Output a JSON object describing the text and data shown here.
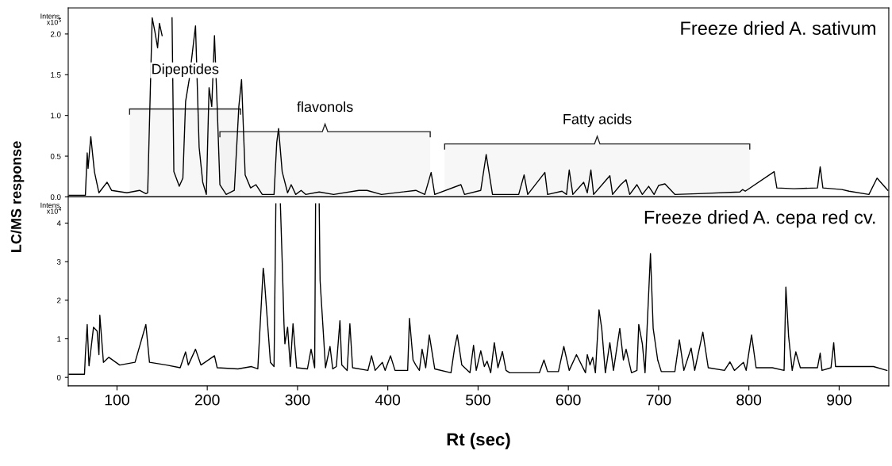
{
  "chart_data": [
    {
      "type": "line",
      "title": "Freeze dried A. sativum",
      "ylabel": "LC/MS response",
      "annotations": [
        "Intens.\nx10$^{5}$"
      ],
      "xlim": [
        46,
        955
      ],
      "ylim": [
        0,
        2.32
      ],
      "yticks": [
        {
          "value": 0,
          "label": "0.0"
        },
        {
          "value": 0.5,
          "label": "0.5"
        },
        {
          "value": 1,
          "label": "1.0"
        },
        {
          "value": 1.5,
          "label": "1.5"
        },
        {
          "value": 2,
          "label": "2.0"
        }
      ],
      "tick_labels": "y",
      "grid": false,
      "legend": false,
      "bands": [
        {
          "axis": "x",
          "from": 114,
          "to": 237,
          "label": "Dipeptides"
        },
        {
          "axis": "x",
          "from": 214,
          "to": 447,
          "label": "flavonols"
        },
        {
          "axis": "x",
          "from": 463,
          "to": 801,
          "label": "Fatty acids"
        }
      ],
      "series": [
        {
          "color": "#000000",
          "x": [
            47,
            65,
            67,
            68,
            71,
            75,
            80,
            89,
            94,
            111,
            125,
            132,
            134,
            139,
            142,
            145,
            147,
            150,
            152,
            159,
            161,
            163,
            169,
            173,
            176,
            180,
            187,
            191,
            195,
            199,
            202,
            205,
            208,
            211,
            214,
            221,
            230,
            235,
            238,
            242,
            248,
            254,
            261,
            274,
            277,
            279,
            283,
            289,
            293,
            298,
            304,
            309,
            324,
            340,
            368,
            377,
            393,
            431,
            441,
            448,
            452,
            481,
            485,
            503,
            509,
            512,
            516,
            545,
            551,
            555,
            574,
            577,
            593,
            598,
            601,
            605,
            617,
            621,
            625,
            628,
            646,
            649,
            658,
            664,
            668,
            676,
            682,
            689,
            695,
            700,
            707,
            718,
            744,
            790,
            793,
            796,
            828,
            831,
            850,
            876,
            879,
            882,
            903,
            911,
            933,
            942,
            954
          ],
          "values": [
            0.02,
            0.02,
            0.54,
            0.35,
            0.74,
            0.31,
            0.05,
            0.18,
            0.08,
            0.05,
            0.08,
            0.04,
            0.05,
            2.2,
            2.03,
            1.83,
            2.13,
            1.98,
            null,
            null,
            2.2,
            0.31,
            0.13,
            0.23,
            1.17,
            1.44,
            2.1,
            0.61,
            0.18,
            0.03,
            1.34,
            1.11,
            1.98,
            1.11,
            0.15,
            0.03,
            0.08,
            1.11,
            1.44,
            0.27,
            0.11,
            0.15,
            0.03,
            0.03,
            0.67,
            0.84,
            0.31,
            0.05,
            0.15,
            0.03,
            0.08,
            0.03,
            0.06,
            0.03,
            0.08,
            0.08,
            0.03,
            0.08,
            0.03,
            0.3,
            0.03,
            0.15,
            0.03,
            0.08,
            0.52,
            0.31,
            0.03,
            0.03,
            0.27,
            0.03,
            0.3,
            0.03,
            0.07,
            0.03,
            0.33,
            0.03,
            0.18,
            0.05,
            0.33,
            0.03,
            0.26,
            0.03,
            0.15,
            0.21,
            0.03,
            0.15,
            0.03,
            0.13,
            0.03,
            0.14,
            0.16,
            0.03,
            0.04,
            0.06,
            0.09,
            0.07,
            0.31,
            0.11,
            0.1,
            0.11,
            0.37,
            0.11,
            0.09,
            0.07,
            0.03,
            0.23,
            0.08
          ]
        }
      ]
    },
    {
      "type": "line",
      "title": "Freeze dried A. cepa red cv.",
      "xlabel": "Rt (sec)",
      "annotations": [
        "Intens.\nx10$^{4}$"
      ],
      "xlim": [
        46,
        955
      ],
      "ylim": [
        -0.22,
        4.68
      ],
      "xticks": [
        100,
        200,
        300,
        400,
        500,
        600,
        700,
        800,
        900
      ],
      "yticks": [
        0,
        1,
        2,
        3,
        4
      ],
      "grid": false,
      "legend": false,
      "series": [
        {
          "color": "#000000",
          "x": [
            47,
            64,
            65,
            67,
            69,
            74,
            78,
            80,
            81,
            85,
            91,
            103,
            120,
            132,
            136,
            155,
            170,
            176,
            179,
            187,
            193,
            208,
            211,
            234,
            249,
            256,
            262,
            263,
            270,
            274,
            276,
            278,
            281,
            283,
            285,
            286,
            289,
            292,
            295,
            299,
            311,
            315,
            319,
            320,
            322,
            324,
            325,
            331,
            336,
            339,
            343,
            347,
            349,
            355,
            358,
            361,
            378,
            382,
            386,
            394,
            397,
            403,
            408,
            422,
            424,
            428,
            431,
            435,
            438,
            442,
            446,
            452,
            470,
            474,
            477,
            482,
            491,
            495,
            498,
            503,
            507,
            510,
            514,
            518,
            522,
            527,
            531,
            535,
            568,
            573,
            577,
            589,
            595,
            601,
            609,
            619,
            621,
            624,
            627,
            630,
            634,
            637,
            641,
            646,
            650,
            657,
            661,
            664,
            670,
            676,
            678,
            682,
            685,
            691,
            694,
            699,
            703,
            718,
            723,
            728,
            736,
            740,
            749,
            755,
            773,
            779,
            784,
            794,
            797,
            803,
            808,
            826,
            839,
            841,
            844,
            848,
            852,
            857,
            876,
            879,
            881,
            891,
            894,
            896,
            938,
            953
          ],
          "values": [
            0.08,
            0.08,
            0.59,
            1.37,
            0.3,
            1.3,
            1.2,
            0.59,
            1.61,
            0.39,
            0.52,
            0.32,
            0.39,
            1.37,
            0.39,
            0.32,
            0.25,
            0.66,
            0.32,
            0.73,
            0.32,
            0.56,
            0.25,
            0.22,
            0.28,
            0.22,
            2.83,
            2.63,
            0.39,
            0.28,
            4.5,
            null,
            4.5,
            3.03,
            1.39,
            0.87,
            1.3,
            0.28,
            1.39,
            0.25,
            0.22,
            0.73,
            0.25,
            4.5,
            null,
            4.5,
            2.51,
            0.25,
            0.8,
            0.22,
            0.28,
            1.47,
            0.32,
            0.18,
            1.39,
            0.25,
            0.18,
            0.56,
            0.18,
            0.39,
            0.18,
            0.56,
            0.18,
            0.18,
            1.53,
            0.45,
            0.32,
            0.18,
            0.73,
            0.25,
            1.1,
            0.22,
            0.12,
            0.76,
            1.1,
            0.32,
            0.12,
            0.83,
            0.18,
            0.69,
            0.28,
            0.42,
            0.12,
            0.9,
            0.25,
            0.67,
            0.18,
            0.12,
            0.12,
            0.45,
            0.15,
            0.15,
            0.8,
            0.18,
            0.59,
            0.12,
            0.59,
            0.32,
            0.52,
            0.12,
            1.75,
            1.27,
            0.12,
            0.9,
            0.18,
            1.27,
            0.45,
            0.73,
            0.12,
            0.18,
            1.37,
            0.87,
            0.12,
            3.21,
            1.27,
            0.45,
            0.15,
            0.15,
            0.97,
            0.18,
            0.76,
            0.18,
            1.17,
            0.25,
            0.18,
            0.4,
            0.18,
            0.39,
            0.18,
            1.1,
            0.25,
            0.25,
            0.18,
            2.34,
            1.07,
            0.18,
            0.66,
            0.25,
            0.25,
            0.63,
            0.18,
            0.25,
            0.9,
            0.28,
            0.28,
            0.18
          ]
        }
      ]
    }
  ]
}
